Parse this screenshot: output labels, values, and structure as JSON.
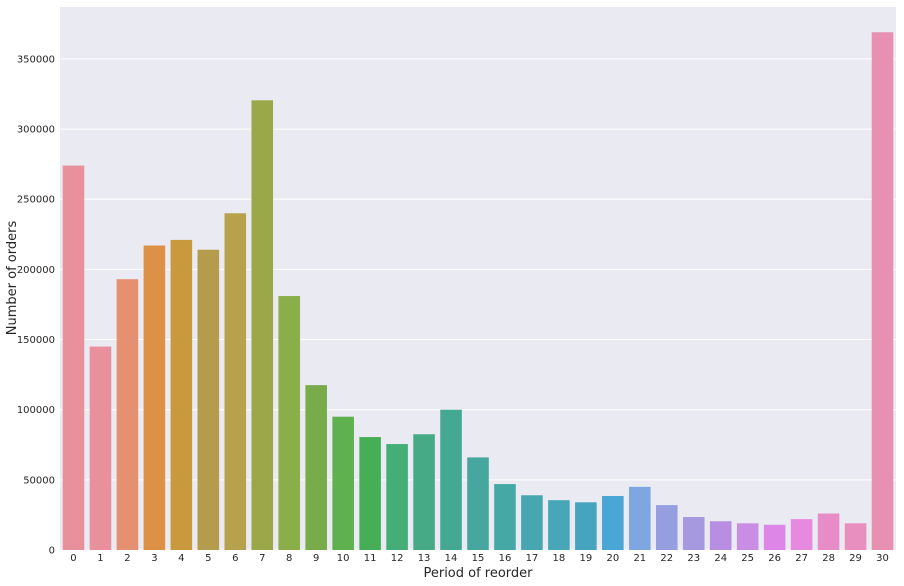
{
  "chart_data": {
    "type": "bar",
    "xlabel": "Period of reorder",
    "ylabel": "Number of orders",
    "ylim": [
      0,
      387000
    ],
    "grid": true,
    "yticks": [
      0,
      50000,
      100000,
      150000,
      200000,
      250000,
      300000,
      350000
    ],
    "ytick_labels": [
      "0",
      "50000",
      "100000",
      "150000",
      "200000",
      "250000",
      "300000",
      "350000"
    ],
    "categories": [
      "0",
      "1",
      "2",
      "3",
      "4",
      "5",
      "6",
      "7",
      "8",
      "9",
      "10",
      "11",
      "12",
      "13",
      "14",
      "15",
      "16",
      "17",
      "18",
      "19",
      "20",
      "21",
      "22",
      "23",
      "24",
      "25",
      "26",
      "27",
      "28",
      "29",
      "30"
    ],
    "values": [
      274000,
      145000,
      193000,
      217000,
      221000,
      214000,
      240000,
      320500,
      181000,
      117500,
      95000,
      80500,
      75500,
      82500,
      100000,
      66000,
      47000,
      39000,
      35500,
      34000,
      38500,
      45000,
      32000,
      23500,
      20500,
      19000,
      18000,
      22000,
      26000,
      19000,
      369000
    ],
    "colors": [
      "#e8919d",
      "#e8919d",
      "#e59070",
      "#dd9146",
      "#c9993d",
      "#b59c4c",
      "#b7a14c",
      "#9aa84a",
      "#8aae49",
      "#78ac4a",
      "#5fb04f",
      "#45ae56",
      "#45ad76",
      "#46aa87",
      "#44a893",
      "#46a79f",
      "#45a8a5",
      "#47a6b0",
      "#47a6b7",
      "#46a4bf",
      "#4aa6d5",
      "#7ea7e2",
      "#959fe0",
      "#a699e0",
      "#b78ee2",
      "#c98de4",
      "#de86e8",
      "#e58ade",
      "#e88cc8",
      "#e88fc0",
      "#e890b2"
    ]
  }
}
